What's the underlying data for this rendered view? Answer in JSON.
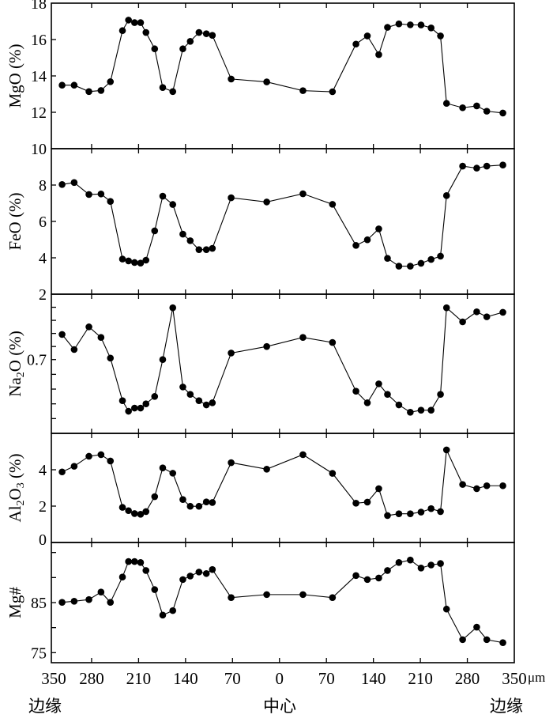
{
  "chart_data": {
    "type": "line",
    "x_unit": "μm",
    "x_values_note_sign": "negative = left of 中心",
    "xlim": [
      -340,
      350
    ],
    "x_ticks": [
      -350,
      -280,
      -210,
      -140,
      -70,
      0,
      70,
      140,
      210,
      280,
      350
    ],
    "x_tick_labels": [
      "350",
      "280",
      "210",
      "140",
      "70",
      "0",
      "70",
      "140",
      "210",
      "280",
      "350"
    ],
    "region_labels": {
      "left": "边缘",
      "center": "中心",
      "right": "边缘"
    },
    "x": [
      -324,
      -306,
      -284,
      -266,
      -252,
      -234,
      -225,
      -216,
      -207,
      -199,
      -186,
      -174,
      -159,
      -144,
      -133,
      -120,
      -109,
      -100,
      -72,
      -19,
      35,
      79,
      114,
      131,
      148,
      161,
      178,
      195,
      211,
      226,
      240,
      249,
      273,
      294,
      309,
      333
    ],
    "color": "#000000",
    "panels": [
      {
        "ylabel": "MgO (%)",
        "ylim": [
          10,
          18
        ],
        "ticks": [
          10,
          12,
          14,
          16,
          18
        ],
        "tick_labels": [
          "12",
          "14",
          "16",
          "18"
        ],
        "labeled": [
          12,
          14,
          16,
          18
        ],
        "values": [
          13.49,
          13.49,
          13.14,
          13.2,
          13.68,
          16.49,
          17.07,
          16.93,
          16.93,
          16.39,
          15.49,
          13.36,
          13.14,
          15.49,
          15.9,
          16.39,
          16.32,
          16.23,
          13.83,
          13.67,
          13.19,
          13.13,
          15.75,
          16.2,
          15.17,
          16.67,
          16.86,
          16.81,
          16.8,
          16.64,
          16.2,
          12.49,
          12.25,
          12.35,
          12.06,
          11.96
        ]
      },
      {
        "ylabel": "FeO (%)",
        "ylim": [
          2,
          10
        ],
        "ticks": [
          4,
          6,
          8
        ],
        "tick_labels": [
          "4",
          "6",
          "8",
          "10"
        ],
        "labeled": [
          4,
          6,
          8,
          10
        ],
        "values": [
          8.03,
          8.14,
          7.48,
          7.51,
          7.1,
          3.93,
          3.83,
          3.74,
          3.71,
          3.87,
          5.48,
          7.39,
          6.93,
          5.3,
          4.94,
          4.45,
          4.45,
          4.52,
          7.3,
          7.07,
          7.52,
          6.94,
          4.68,
          4.99,
          5.59,
          3.97,
          3.54,
          3.54,
          3.7,
          3.91,
          4.09,
          7.42,
          9.04,
          8.93,
          9.04,
          9.1
        ]
      },
      {
        "ylabel": "Na2O (%)",
        "ylim": [
          0,
          2
        ],
        "scale_breaks": [
          0,
          0.7,
          2
        ],
        "tick_labels": [
          "0.7",
          "2"
        ],
        "labeled": [
          0.7,
          2
        ],
        "values": [
          1.2,
          0.9,
          1.35,
          1.14,
          0.73,
          0.31,
          0.21,
          0.24,
          0.24,
          0.28,
          0.35,
          0.7,
          1.73,
          0.44,
          0.37,
          0.31,
          0.27,
          0.29,
          0.83,
          0.96,
          1.14,
          1.04,
          0.4,
          0.29,
          0.47,
          0.37,
          0.27,
          0.2,
          0.22,
          0.22,
          0.37,
          1.73,
          1.45,
          1.65,
          1.55,
          1.64
        ]
      },
      {
        "ylabel": "Al2O3 (%)",
        "ylim": [
          0,
          6
        ],
        "ticks": [
          2,
          4
        ],
        "tick_labels": [
          "0",
          "2",
          "4"
        ],
        "labeled": [
          0,
          2,
          4
        ],
        "values": [
          3.88,
          4.19,
          4.74,
          4.83,
          4.48,
          1.93,
          1.75,
          1.59,
          1.55,
          1.7,
          2.52,
          4.1,
          3.81,
          2.36,
          1.99,
          1.99,
          2.23,
          2.2,
          4.39,
          4.03,
          4.83,
          3.8,
          2.16,
          2.22,
          2.96,
          1.48,
          1.58,
          1.58,
          1.67,
          1.86,
          1.7,
          5.09,
          3.19,
          2.96,
          3.12,
          3.12
        ]
      },
      {
        "ylabel": "Mg#",
        "ylim": [
          73,
          97
        ],
        "ticks": [
          75,
          80,
          85,
          90,
          95
        ],
        "tick_labels": [
          "75",
          "85"
        ],
        "labeled": [
          75,
          85
        ],
        "values": [
          85.05,
          85.27,
          85.6,
          87.1,
          85.05,
          90.1,
          93.2,
          93.2,
          93.0,
          91.4,
          87.6,
          82.5,
          83.4,
          89.6,
          90.3,
          91.1,
          90.8,
          91.6,
          86.0,
          86.6,
          86.6,
          86.0,
          90.4,
          89.6,
          89.9,
          91.4,
          93.0,
          93.5,
          91.9,
          92.5,
          92.8,
          83.7,
          77.6,
          80.1,
          77.6,
          77.0
        ]
      }
    ]
  }
}
